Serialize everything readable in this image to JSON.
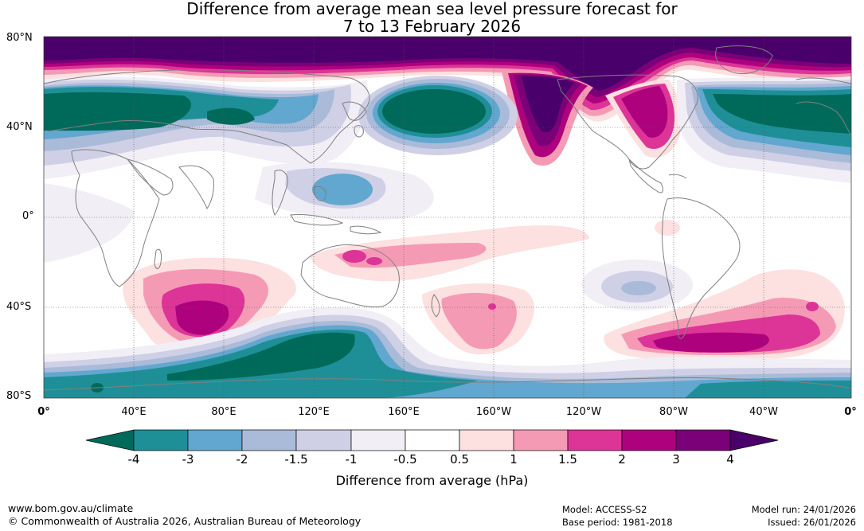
{
  "title_line1": "Difference from average mean sea level pressure forecast for",
  "title_line2": "7 to 13 February 2026",
  "lat_labels": [
    "80°N",
    "40°N",
    "0°",
    "40°S",
    "80°S"
  ],
  "lon_labels": [
    "0°",
    "40°E",
    "80°E",
    "120°E",
    "160°E",
    "160°W",
    "120°W",
    "80°W",
    "40°W",
    "0°"
  ],
  "colorbar": {
    "ticks": [
      "-4",
      "-3",
      "-2",
      "-1.5",
      "-1",
      "-0.5",
      "0.5",
      "1",
      "1.5",
      "2",
      "3",
      "4"
    ],
    "colors": {
      "below_-4": "#006a5a",
      "-4_-3": "#1f8f97",
      "-3_-2": "#62a7cf",
      "-2_-1.5": "#a9bbd8",
      "-1.5_-1": "#cfd0e6",
      "-1_-0.5": "#f1eef6",
      "-0.5_0.5": "#ffffff",
      "0.5_1": "#fde0e0",
      "1_1.5": "#f59ab5",
      "1.5_2": "#dd3497",
      "2_3": "#ae017e",
      "3_4": "#7a0177",
      "above_4": "#49006a"
    },
    "label": "Difference from average (hPa)"
  },
  "footer": {
    "url": "www.bom.gov.au/climate",
    "copyright": "© Commonwealth of Australia 2026, Australian Bureau of Meteorology",
    "model": "Model: ACCESS-S2",
    "base_period": "Base period: 1981-2018",
    "model_run": "Model run: 24/01/2026",
    "issued": "Issued: 26/01/2026"
  }
}
